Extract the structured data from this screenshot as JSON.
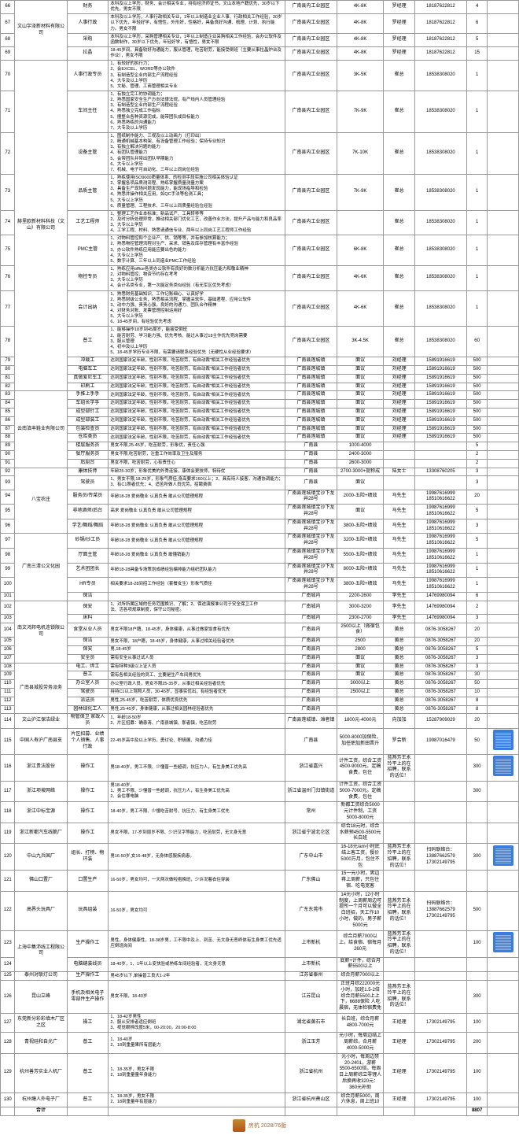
{
  "rows": [
    {
      "n": "66",
      "co": "文山宇泽新材料有限公司",
      "pos": "财务",
      "req": "本科及以上学历，财务、会计相关专业，持有经济师证书，文山本地户籍优先，30岁以下优先，男女不限",
      "loc": "广南县内工业园区",
      "sal": "4K-8K",
      "name": "罗经理",
      "tel": "18187622812",
      "num": "4"
    },
    {
      "n": "67",
      "co": "文山宇泽新材料有限公司",
      "pos": "人事行政",
      "req": "本科及以上学历，人事行政相关专业，1年以上制造业企业人事、行政相关工作经验，30岁以下优先，年轻好学，有悟性，外形好，性格好，具备良好沟通、梳理、计划、执行能力。男女不限",
      "loc": "广南县内工业园区",
      "sal": "4K-8K",
      "name": "罗经理",
      "tel": "18187622812",
      "num": "6"
    },
    {
      "n": "68",
      "co": "",
      "pos": "采购",
      "req": "本科及以上学历，采购管理相关专业，1年以上制造企业采购相关工作经验，会办公软件及函数制作，30岁以下优先，年轻好学，有悟性，男女不限",
      "loc": "广南县内工业园区",
      "sal": "4K-8K",
      "name": "罗经理",
      "tel": "18187622812",
      "num": "5"
    },
    {
      "n": "69",
      "co": "文山宇泽新材料有限公司",
      "pos": "拉晶",
      "req": "18-45岁间，具备较好沟通能力，服从管理，吃苦耐劳，能接受倒班（主要从事拉晶炉台及作业），男女不限",
      "loc": "广南县内工业园区",
      "sal": "4K-8K",
      "name": "罗经理",
      "tel": "18187622812",
      "num": "15"
    },
    {
      "n": "70",
      "co": "赫里欧新材料科技（文山）有限公司",
      "pos": "人事行政专员",
      "req": "1、有较好的执行力；\n2、会EXCEL、WORD等办公软件\n3、有制造型企业内部生产流程经验\n4、大专及以上学历\n5、文秘、管理、工商管理相关专业",
      "loc": "广南县内工业园区",
      "sal": "3K-5K",
      "name": "崔总",
      "tel": "18538308020",
      "num": "1"
    },
    {
      "n": "71",
      "co": "赫里欧新材料科技（文山）有限公司",
      "pos": "车间主任",
      "req": "1、有独立完工的协调能力；\n2、熟悉国家安全生产方向法律法规，有产线内人员管理经验\n3、有制造型企业内部生产流程经验\n4、熟悉独立完成工作指标\n5、擅整合各种资源完成，能带团队成目标能力\n6、熟悉熟练的沟通能力\n7、大专及以上学历",
      "loc": "广南县内工业园区",
      "sal": "7K-9K",
      "name": "崔总",
      "tel": "18538308020",
      "num": "1"
    },
    {
      "n": "72",
      "co": "赫里欧新材料科技（文山）有限公司",
      "pos": "设备主管",
      "req": "1、图纸制作能力、三视及以上动画力（打印出）\n2、精通机械基本构架、有设备管理工作经验；保持专业知识\n3、有独立解决问题的能力\n4、有团队管理能力\n5、会带团队并带出团队早期能力\n6、大专以上学历\n7、机械、电子可自动化、三年以上同岗位经验",
      "loc": "广南县内工业园区",
      "sal": "7K-10K",
      "name": "崔总",
      "tel": "18538308020",
      "num": "1"
    },
    {
      "n": "73",
      "co": "赫里欧新材料科技（文山）有限公司",
      "pos": "品质主管",
      "req": "1、熟练使用ISO9000质量体系、的检测手段实施公司相关体验认证\n2、掌握各项品质测流程、熟练掌握质量测量方案\n3、具备生产现场问题发现能力，能现场指导和检验\n4、熟悉并操作相关应用，如QC手法等检测工具；\n5、大专以上学历\n6、质量管理、工程技术、三年以上同质量经验位经验",
      "loc": "广南县内工业园区",
      "sal": "7K-9K",
      "name": "崔总",
      "tel": "18538308020",
      "num": "1"
    },
    {
      "n": "74",
      "co": "赫里欧新材料科技（文山）有限公司",
      "pos": "工艺工程师",
      "req": "1、整理工艺作业本标准；新品试产、工具转移等\n2、及时分析处理异常，推动相关部门优化工艺，改善作业方法，提升产品与能力和良品率\n3、大专以上学历\n4、工学工程、材料、熟悉请通信专业、两年以上同岗工艺工程师工作经验",
      "loc": "广南县内工业园区",
      "sal": "",
      "name": "崔总",
      "tel": "18538308020",
      "num": "1"
    },
    {
      "n": "75",
      "co": "赫里欧新材料科技（文山）有限公司",
      "pos": "PMC主管",
      "req": "1、对物料管控和个企业产、供、销等等，并有参加核算能力；\n2、熟悉物控管理流程对生产、采求、销售及库存管理有丰富作经验\n3、办公软件熟练应用能应要出色的能力\n4、大专以上学历\n5、数字计算、三年以上同造业PMC工作经验",
      "loc": "广南县内工业园区",
      "sal": "6K-8K",
      "name": "崔总",
      "tel": "18538308020",
      "num": "1"
    },
    {
      "n": "76",
      "co": "赫里欧新材料科技（文山）有限公司",
      "pos": "物控专员",
      "req": "1、熟练应用office各类办公软件有良好的数分析能力抗压能力和敬业精神\n2、对物料管控、物资节约存在考考\n3、大专以上学历\n4、会计名类专业，第一次能定务类似经验（有无军区优先考虑）",
      "loc": "广南县内工业园区",
      "sal": "4K-6K",
      "name": "崔总",
      "tel": "18538308020",
      "num": "1"
    },
    {
      "n": "77",
      "co": "赫里欧新材料科技（文山）有限公司",
      "pos": "会计出纳",
      "req": "1、熟悉财务基础知识、工作记账细心、认真好学\n2、熟悉财级公业务，熟悉相关流程、掌握关软件，基础君程、应用公软件\n3、动中力强、责责心强，良好的沟通力、团队合作精神\n4、对财务对账、发票管理控制运用好\n5、大专以上学历\n6、18-45岁间，有经验优先考虑",
      "loc": "广南县内工业园区",
      "sal": "4K-6K",
      "name": "崔总",
      "tel": "18538308020",
      "num": "1"
    },
    {
      "n": "78",
      "co": "赫里欧新材料科技（文山）有限公司",
      "pos": "普工",
      "req": "1、能够操作18岁到45周岁，能接受倒班\n2、能苦耐劳、学习能力强、优先考核、能过从事过18主作优先竞岗需要\n3、服从管理\n4、初中及以上学历\n5、18-45岁学历专业不限，有需要请联系经验优先（无硬性从业经验要求）",
      "loc": "广南县内工业园区",
      "sal": "3K-4.5K",
      "name": "崔总",
      "tel": "18538308020",
      "num": "60"
    },
    {
      "n": "79",
      "co": "",
      "pos": "冲裁工",
      "req": "达到国家法定年龄，性别不限，吃苦耐劳，有自动裁\"相关工作经验者优先",
      "loc": "广南县莲城镇",
      "sal": "面议",
      "name": "刘经理",
      "tel": "15891916619",
      "num": "500"
    },
    {
      "n": "80",
      "co": "",
      "pos": "电脑车工",
      "req": "达到国家法定年龄，性别不限，吃苦耐劳，有自动裁\"相关工作经验者优先",
      "loc": "广南县莲城镇",
      "sal": "面议",
      "name": "刘经理",
      "tel": "15891916619",
      "num": "500"
    },
    {
      "n": "81",
      "co": "",
      "pos": "真做爱尼车工",
      "req": "达到国家法定年龄，性别不限，吃苦耐劳，有自动裁\"相关工作经验者优先",
      "loc": "广南县莲城镇",
      "sal": "面议",
      "name": "刘经理",
      "tel": "15891916619",
      "num": "500"
    },
    {
      "n": "82",
      "co": "",
      "pos": "印刷工",
      "req": "达到国家法定年龄，性别不限，吃苦耐劳，有自动裁\"相关工作经验者优先",
      "loc": "广南县莲城镇",
      "sal": "面议",
      "name": "刘经理",
      "tel": "15891916619",
      "num": "500"
    },
    {
      "n": "83",
      "co": "云南滇丰鞋业有限公司",
      "pos": "手推上手手",
      "req": "达到国家法定年龄，性别不限，吃苦耐劳，有自动裁\"相关工作经验者优先",
      "loc": "广南县莲城镇",
      "sal": "面议",
      "name": "刘经理",
      "tel": "15891916619",
      "num": "500"
    },
    {
      "n": "84",
      "co": "",
      "pos": "车组长学手",
      "req": "达到国家法定年龄，性别不限，吃苦耐劳，有自动裁\"相关工作经验者优先",
      "loc": "广南县莲城镇",
      "sal": "面议",
      "name": "刘经理",
      "tel": "15891916619",
      "num": "500"
    },
    {
      "n": "85",
      "co": "",
      "pos": "成型部针工",
      "req": "达到国家法定年龄，性别不限，吃苦耐劳，有自动裁\"相关工作经验者优先",
      "loc": "广南县莲城镇",
      "sal": "面议",
      "name": "刘经理",
      "tel": "15891916619",
      "num": "500"
    },
    {
      "n": "86",
      "co": "",
      "pos": "成型部装工",
      "req": "达到国家法定年龄，性别不限，吃苦耐劳，有自动裁\"相关工作经验者优先",
      "loc": "广南县莲城镇",
      "sal": "面议",
      "name": "刘经理",
      "tel": "15891916619",
      "num": "500"
    },
    {
      "n": "87",
      "co": "",
      "pos": "包装检查员",
      "req": "达到国家法定年龄，性别不限，吃苦耐劳，有自动裁\"相关工作经验者优先",
      "loc": "广南县莲城镇",
      "sal": "面议",
      "name": "刘经理",
      "tel": "15891916619",
      "num": "500"
    },
    {
      "n": "88",
      "co": "",
      "pos": "仓库类员",
      "req": "达到国家法定年龄，性别不限，吃苦耐劳，有自动裁\"相关工作经验者优先",
      "loc": "广南县莲城镇",
      "sal": "面议",
      "name": "刘经理",
      "tel": "15891916619",
      "num": "500"
    },
    {
      "n": "89",
      "co": "",
      "pos": "楼层服务员",
      "req": "男女不限,25-45岁，吃苦耐劳，形象优，责任心强",
      "loc": "广南县",
      "sal": "1000-4000",
      "name": "",
      "tel": "",
      "num": "5"
    },
    {
      "n": "90",
      "co": "",
      "pos": "餐厅服务员",
      "req": "男女不限,吃苦耐劳，注重工作效率及卫生及服务",
      "loc": "广南县",
      "sal": "2400-3000",
      "name": "",
      "tel": "",
      "num": "2"
    },
    {
      "n": "91",
      "co": "",
      "pos": "后厨台",
      "req": "男女不限，吃苦耐劳，心有责任心",
      "loc": "广南县",
      "sal": "2600-3000",
      "name": "",
      "tel": "",
      "num": "2"
    },
    {
      "n": "92",
      "co": "八宝农庄",
      "pos": "康体技师",
      "req": "年龄25-30岁，形象优美的外秀连接，康体会更技师，特待优",
      "loc": "广南县",
      "sal": "2700-3000+提称成",
      "name": "陆女士",
      "tel": "13308760205",
      "num": "3"
    },
    {
      "n": "93",
      "co": "",
      "pos": "驾驶员",
      "req": "1、男女不限,18-25岁，形象气质佳,身高要求160以上；2、具有待人接客，沟通协调能力；3、有C1照者优先；4、适苦所做人员优劳，招聘费宿",
      "loc": "广南县",
      "sal": "面议",
      "name": "",
      "tel": "",
      "num": "3"
    },
    {
      "n": "94",
      "co": "",
      "pos": "服务员/传菜员",
      "req": "年龄18-28 爱岗敬业 认真负责 敢从公司管理规程",
      "loc": "广南县莲城镇宝沙下龙井28号",
      "sal": "2000-五险+绩效",
      "name": "马先生",
      "tel": "19987616999 18510616622",
      "num": "20"
    },
    {
      "n": "95",
      "co": "",
      "pos": "非地酒师/后台",
      "req": "高求 爱岗敬业 认真负责 敢从公司管理规程",
      "loc": "广南县莲城镇宝沙下龙井28号",
      "sal": "面议",
      "name": "马先生",
      "tel": "19987616999 18510616622",
      "num": "5"
    },
    {
      "n": "96",
      "co": "",
      "pos": "学艺/舞蹈/舞蹈",
      "req": "年龄18-28 爱岗敬业 认真负责 敢从公司管理规程",
      "loc": "广南县莲城镇宝沙下龙井28号",
      "sal": "3800-五险+绩效",
      "name": "马先生",
      "tel": "19987616999 18510616622",
      "num": "3"
    },
    {
      "n": "97",
      "co": "广南三清公文化园",
      "pos": "砂锅/炒工员",
      "req": "年龄18-28 爱岗敬业 认真负责 敢从公司管理规程",
      "loc": "广南县莲城镇宝沙下龙井28号",
      "sal": "3200-五险+绩效",
      "name": "马先生",
      "tel": "19987616999 18510616622",
      "num": "5"
    },
    {
      "n": "98",
      "co": "",
      "pos": "厅面主管",
      "req": "年龄18-28 爱岗敬业 认真负责 敢懂销能力",
      "loc": "广南县莲城镇宝沙下龙井28号",
      "sal": "5500-五险+绩效",
      "name": "马先生",
      "tel": "19987616999 18510616622",
      "num": "1"
    },
    {
      "n": "99",
      "co": "",
      "pos": "艺术团团长",
      "req": "年龄18-28具备专场策划成绩经验编排能力组织团队能力",
      "loc": "广南县莲城镇宝沙下龙井28号",
      "sal": "8000-五险+绩效",
      "name": "马先生",
      "tel": "19987616999 18510616622",
      "num": "1"
    },
    {
      "n": "100",
      "co": "",
      "pos": "HR专员",
      "req": "相关要求18-28间招工作经验（套餐女生）形象气质佳",
      "loc": "广南县莲城镇宝沙下龙井28号",
      "sal": "3800-五险+绩效",
      "name": "马先生",
      "tel": "19987616999 18510616622",
      "num": "1"
    },
    {
      "n": "101",
      "co": "",
      "pos": "保洁",
      "req": "",
      "loc": "广南城内",
      "sal": "2200-2600",
      "name": "李先生",
      "tel": "14769980094",
      "num": "6"
    },
    {
      "n": "102",
      "co": "南文鸿邦电机连锁限公司",
      "pos": "保安",
      "req": "1、对所所属区域的任务范围换识、了解；2、保途演报准公司于安全保卫工作\n法、活各项规章制度，保守公司秘密。",
      "loc": "广南城内",
      "sal": "3000-3200",
      "name": "李先生",
      "tel": "14769980094",
      "num": "2"
    },
    {
      "n": "103",
      "co": "",
      "pos": "床料",
      "req": "",
      "loc": "广南城内",
      "sal": "2300-2700",
      "name": "李先生",
      "tel": "14769980094",
      "num": "3"
    },
    {
      "n": "104",
      "co": "",
      "pos": "食堂从业人员",
      "req": "男女不限18户籍，18-45岁，身体健康，从事过做家饭食有优先",
      "loc": "广南县内",
      "sal": "2500以上（做宿包食）",
      "name": "黄总",
      "tel": "0876-3058267",
      "num": "20"
    },
    {
      "n": "105",
      "co": "",
      "pos": "保洁",
      "req": "男女不限，18户籍，18-45岁，身体健康，从事过相关经验者优先",
      "loc": "广南县内",
      "sal": "2500",
      "name": "黄总",
      "tel": "0876-3058267",
      "num": "20"
    },
    {
      "n": "106",
      "co": "",
      "pos": "保安",
      "req": "男,18-45岁",
      "loc": "广南县内",
      "sal": "2800",
      "name": "黄总",
      "tel": "0876-3058267",
      "num": "5"
    },
    {
      "n": "107",
      "co": "",
      "pos": "安全员",
      "req": "需有安全从事过试人员",
      "loc": "广南县内",
      "sal": "面议",
      "name": "黄总",
      "tel": "0876-3058267",
      "num": "3"
    },
    {
      "n": "108",
      "co": "广南县城投劳务派务",
      "pos": "电工、焊工",
      "req": "需有特种3级以上证人员",
      "loc": "广南县内",
      "sal": "面议",
      "name": "黄总",
      "tel": "0876-3058267",
      "num": "3"
    },
    {
      "n": "109",
      "co": "",
      "pos": "普工",
      "req": "需有各相关经验的员工、主要是生产车间男优先",
      "loc": "广南县内",
      "sal": "面议",
      "name": "黄总",
      "tel": "0876-3058267",
      "num": "30"
    },
    {
      "n": "110",
      "co": "",
      "pos": "办公室人员",
      "req": "办公室行政人员，男女不限25-35岁，从事过相关经验者优先",
      "loc": "广南县内",
      "sal": "3000以上",
      "name": "黄总",
      "tel": "0876-3058267",
      "num": "50"
    },
    {
      "n": "111",
      "co": "",
      "pos": "驾驶员",
      "req": "持持C1以上驾照人员，30-45岁，显事实优出，有经验者优先",
      "loc": "广南县内",
      "sal": "2500以上",
      "name": "黄总",
      "tel": "0876-3058267",
      "num": "10"
    },
    {
      "n": "112",
      "co": "",
      "pos": "派送员",
      "req": "男性,25-45岁，吃苦耐劳，体质优良优先",
      "loc": "广南县内",
      "sal": "",
      "name": "黄总",
      "tel": "0876-3058267",
      "num": "8"
    },
    {
      "n": "113",
      "co": "",
      "pos": "园林绿化工人",
      "req": "男性,25-45岁，身体健康，从事过相关园林经验者优先",
      "loc": "广南县内",
      "sal": "",
      "name": "黄总",
      "tel": "0876-3058267",
      "num": "8"
    },
    {
      "n": "114",
      "co": "文山沪江保洁绿业",
      "pos": "物管保卫\n家政人员",
      "req": "1、年龄18-50岁\n2、片区招募：确患清、广南县城镇、那者镇，吃苦耐劳",
      "loc": "广南县莲城镇、滩者镇",
      "sal": "1800元-4000元",
      "name": "向加加",
      "tel": "15287909029",
      "num": "20"
    },
    {
      "n": "115",
      "co": "中国人寿沪广南县支",
      "pos": "片区招募、业绩个人销售、人事行政",
      "req": "22-45岁高中及以上学历，勇讨论、积极展、沟通力佳",
      "loc": "广南县",
      "sal": "5000-8000加保险，加任职加新田晋升",
      "name": "罗会新",
      "tel": "19987016479",
      "num": "50",
      "q": 1
    },
    {
      "n": "116",
      "co": "浙江贵法股份",
      "pos": "操作工",
      "req": "男18-40岁，男工不限、少懂普一些超调，抗压力人，有生身美工优先高",
      "loc": "浙江省嘉兴",
      "sal": "计件工资，综合工资4500-9000元。定稿食费，包住",
      "name": "蓝燕芳王永玲平上的在招聘，联系的话位！",
      "tel": "",
      "num": "300",
      "q": 1
    },
    {
      "n": "117",
      "co": "浙江项坡网络",
      "pos": "操作工",
      "req": "男18-40岁，\n1、男工不限、少懂普一些超调，抗压力人，有生身美工优先高\n2、会住哪电脑",
      "loc": "浙江省温州门归镇街道",
      "sal": "计件工资，综合工资5000-7000元。定稿食费，包住",
      "name": "",
      "tel": "",
      "num": "300"
    },
    {
      "n": "118",
      "co": "浙江中标宝源",
      "pos": "操作工",
      "req": "18-40岁，男工不限、少懂吃苦耐号、抗压力、有生身美工优先",
      "loc": "常州",
      "sal": "新都工资综合5000元计件制，工资5000-8000元",
      "name": "",
      "tel": "",
      "num": ""
    },
    {
      "n": "119",
      "co": "浙江新都汽车线脆厂",
      "pos": "操作工",
      "req": "男女不限，17-岁到周岁不限、少识汉字等能力，吃苦耐劳，无文身无意",
      "loc": "浙江省宁波北仑区",
      "sal": "综合18元时，综合水薪预4500-5500元长白班",
      "name": "",
      "tel": "",
      "num": ""
    },
    {
      "n": "120",
      "co": "中山九兵国厂",
      "pos": "组长、打榜、物环装",
      "req": "男16-50岁,女16-48岁，无身体感服疾病患。",
      "loc": "广东中山市",
      "sal": "16-18元/am小时底结上客工资，餐价5000万月，包住不包",
      "name": "蓝燕芳王永玲平上的在招聘，联系的话位！",
      "tel": "扫码联络台：13887662579 17302149795",
      "num": "300",
      "q": 1
    },
    {
      "n": "121",
      "co": "佛山口置厂",
      "pos": "口置生产",
      "req": "16-50岁，男女均可，一天两次做啦抱换班，少许况着衣住穿装",
      "loc": "广东佛山",
      "sal": "15一元小时，男边蒋上周薪，只包住宿、吃电宽客",
      "name": "",
      "tel": "",
      "num": ""
    },
    {
      "n": "122",
      "co": "高界头玩具厂",
      "pos": "玩具组装",
      "req": "16-50岁，男女均可",
      "loc": "广东东莞市",
      "sal": "14元小时，12小时制度，上周薪周边可提所一个月可以做全白班招，天工作10小时，做的，男子薪5000元",
      "name": "蓝燕芳王永玲平上的在招聘，联系的话位！",
      "tel": "扫码联络台：13887662579 17302149795",
      "num": "500"
    },
    {
      "n": "123",
      "co": "上海中集沛线工程限公司",
      "pos": "生产操作工",
      "req": "男性，身体健康性，18-38岁男，工不限中及上、到苦、无文身无恶终体有生身美工优先适应倒班岗间",
      "loc": "上市新杭",
      "sal": "综合月薪7000以上，给食宿、宿每月260元",
      "name": "蓝燕芳王永玲平上的在招聘，联系的话位！",
      "tel": "",
      "num": "100",
      "q": 1
    },
    {
      "n": "124",
      "co": "",
      "pos": "电脑缝装线员",
      "req": "18-40岁，1、1年以上变快验或熟练车间经验者，无文身无意",
      "loc": "上市新杭",
      "sal": "底薪+计件，综合月薪5500以上",
      "name": "",
      "tel": "",
      "num": ""
    },
    {
      "n": "125",
      "co": "泰州对联灯公司",
      "pos": "生产操作工",
      "req": "男45岁以下,单操普工良大1-2年",
      "loc": "江苏省泰州",
      "sal": "综合月薪7000以上",
      "name": "",
      "tel": "",
      "num": ""
    },
    {
      "n": "126",
      "co": "昆山立峰",
      "pos": "手机及相关电子零部件生产操作",
      "req": "男女不限，18-40岁",
      "loc": "江苏昆山",
      "sal": "正班月综222000元小时，加班1.5-2倍\n综合月薪5500上上下，6688保险\n人吃晨宿，无体检宿费免",
      "name": "蓝燕芳王永玲平上的在招聘，联系的话位！",
      "tel": "",
      "num": "300"
    },
    {
      "n": "127",
      "co": "东莞新分彩彩填木厂区之区",
      "pos": "操工",
      "req": "1、18-42岁男性\n2、服从安排者适应倒班\n3、视觉眼辨改度5米，00-20:00，20:00-8:00",
      "loc": "湖北省黄石市",
      "sal": "长白班，综合月薪4800-7000元",
      "name": "王经理",
      "tel": "17302149795",
      "num": "100"
    },
    {
      "n": "128",
      "co": "青视硅和自光广",
      "pos": "普工",
      "req": "1、18-40岁\n2、18到重量果所有层能力",
      "loc": "浙江玉芳",
      "sal": "元小时，每周边结上周薪综，合月薪4000-5000元",
      "name": "王经理",
      "tel": "17302149795",
      "num": "200"
    },
    {
      "n": "129",
      "co": "杭州善芳实业人机厂",
      "pos": "普工",
      "req": "1、18-35岁，男女不限\n2、18到重量量年身能力",
      "loc": "浙江省杭州",
      "sal": "元小时，每周边禁20-2401，游薪5500-6500倍，每周日上周薪综立零锂人后换再收320元：360元补助",
      "name": "王经理",
      "tel": "17302149795",
      "num": "100"
    },
    {
      "n": "130",
      "co": "杭州塘人外电子厂",
      "pos": "普工",
      "req": "1、18-35岁，男女不限\n2、18到重量年有层能力",
      "loc": "浙江省杭州萧山区",
      "sal": "综合月薪5000，周六休息，周上班10",
      "name": "王经理",
      "tel": "17302149795",
      "num": "100"
    }
  ],
  "total": {
    "label": "合计",
    "value": "8807"
  },
  "footer": "房杭 2028/76版"
}
